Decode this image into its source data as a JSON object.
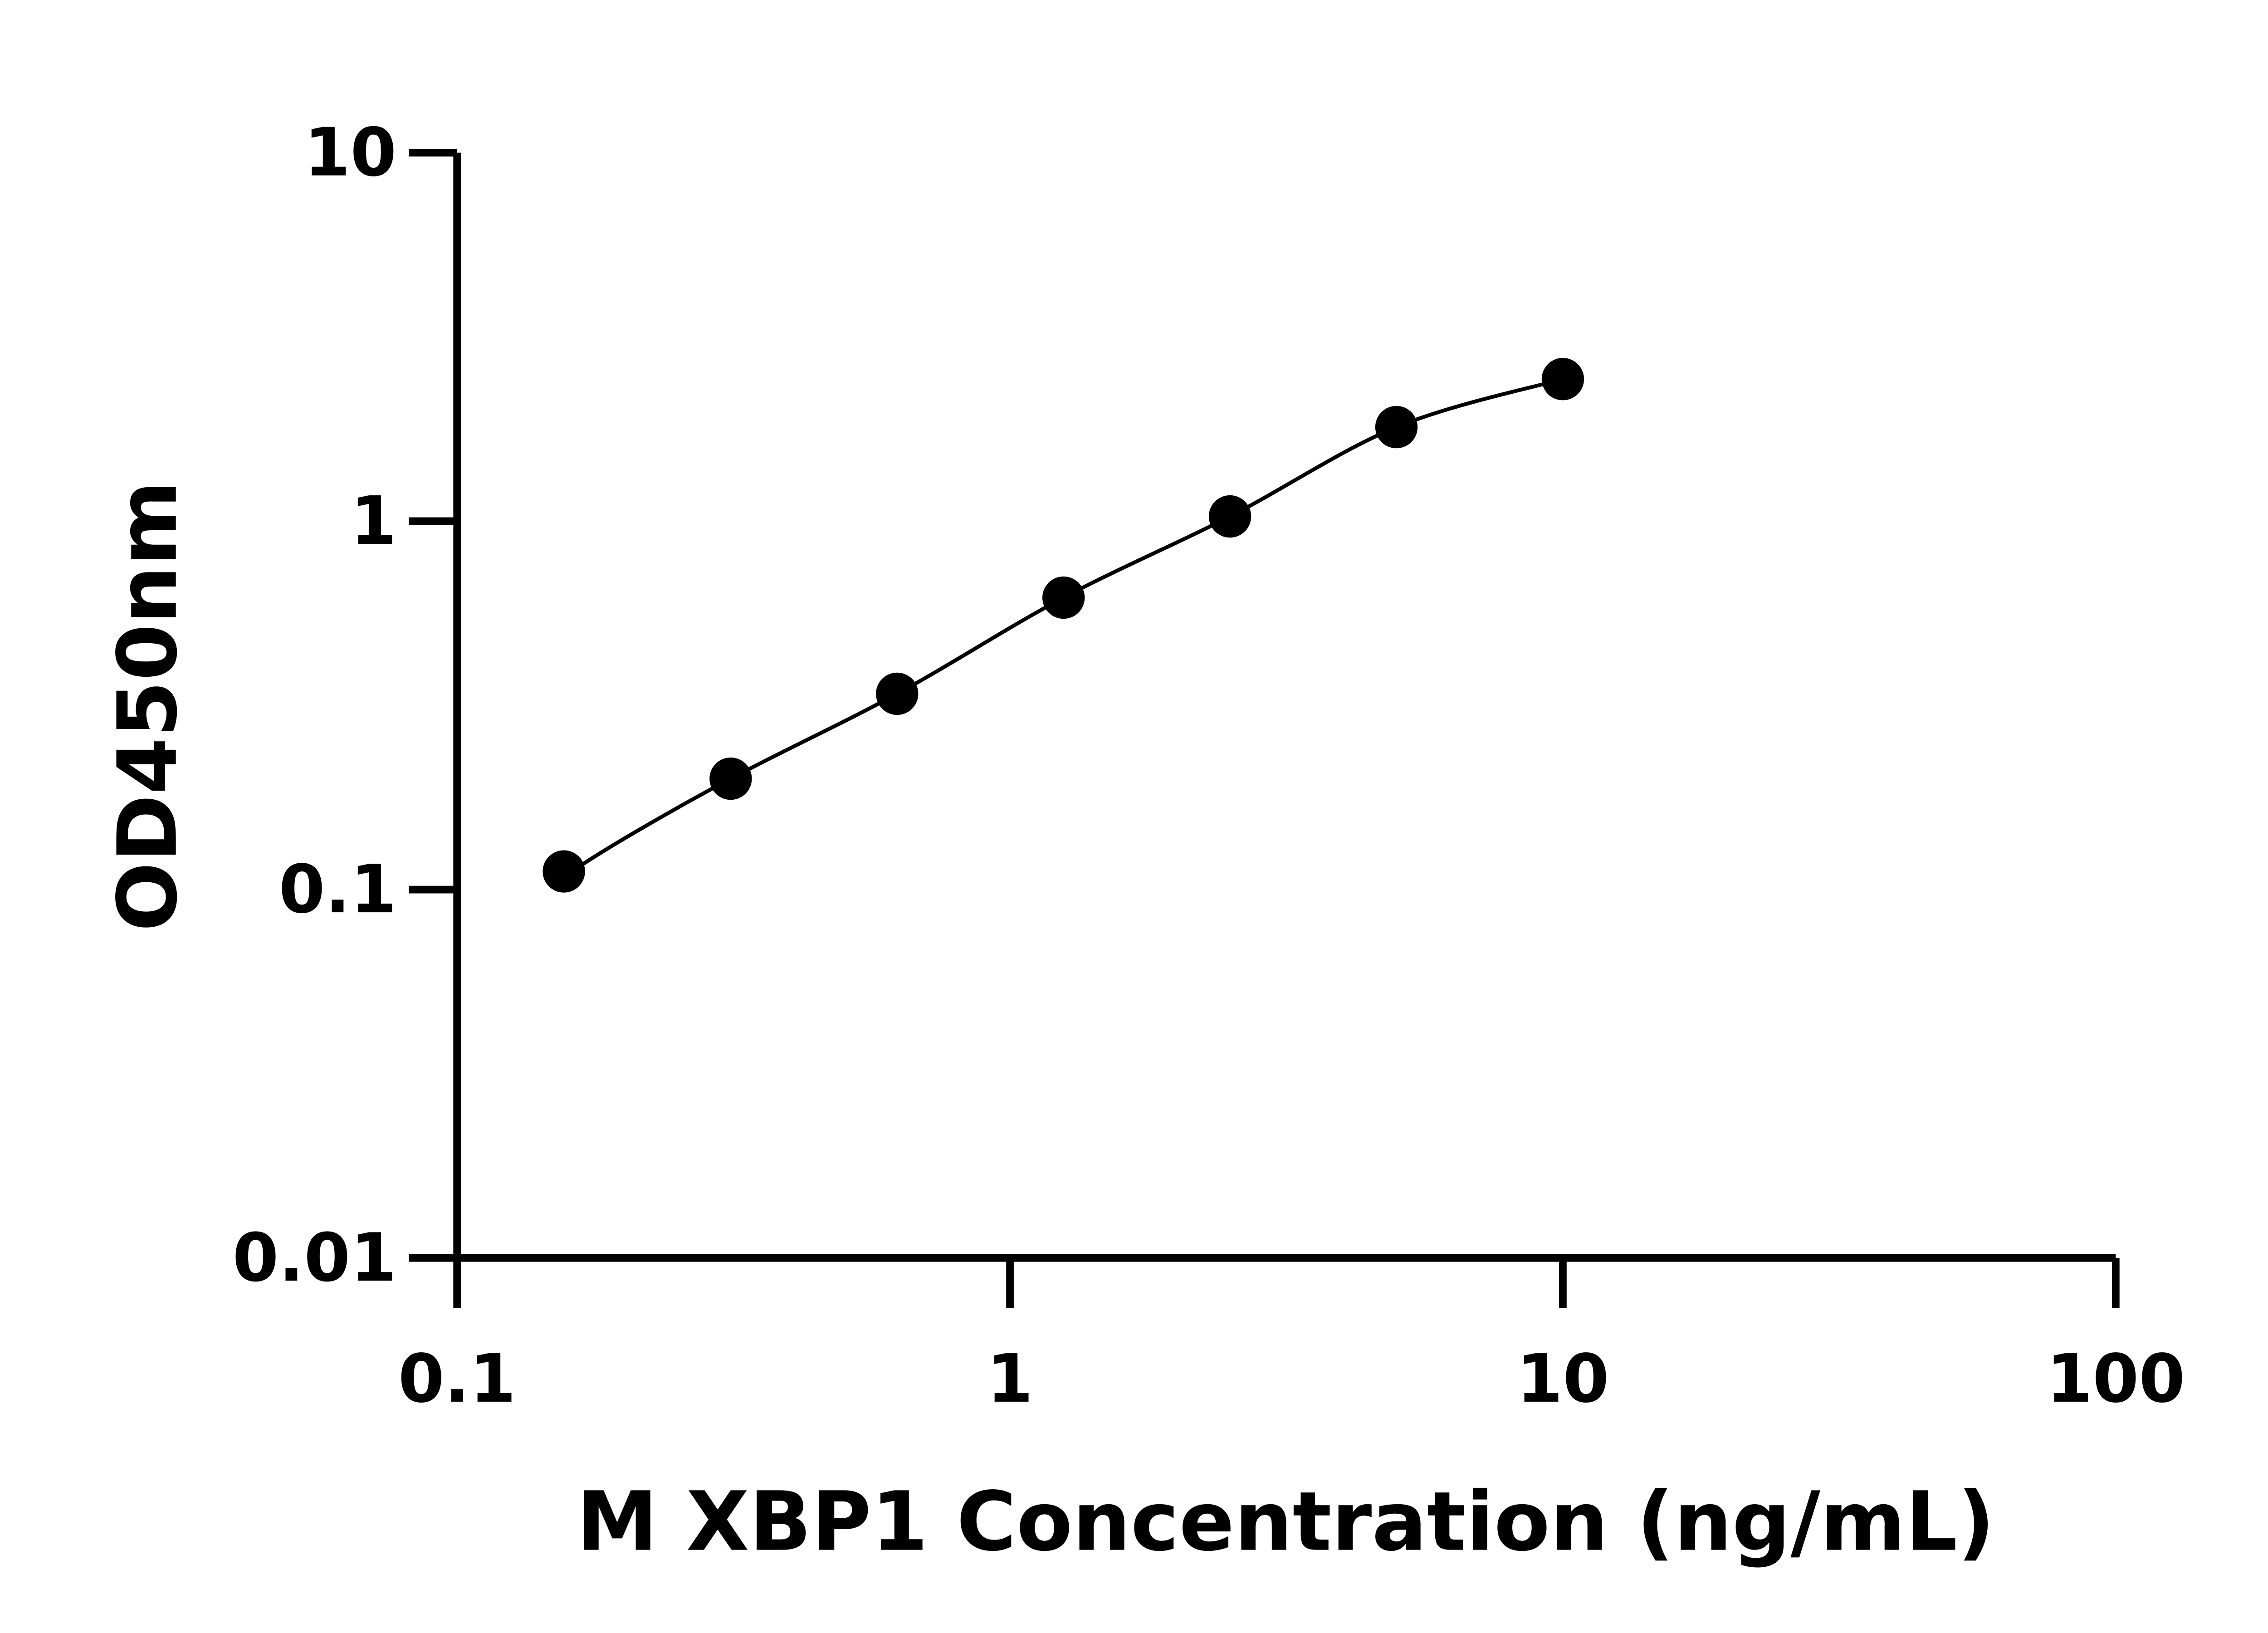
{
  "chart_data": {
    "type": "scatter",
    "title": "",
    "xlabel": "M XBP1 Concentration (ng/mL)",
    "ylabel": "OD450nm",
    "x_scale": "log",
    "y_scale": "log",
    "xlim": [
      0.1,
      100
    ],
    "ylim": [
      0.01,
      10
    ],
    "x_ticks": [
      "0.1",
      "1",
      "10",
      "100"
    ],
    "y_ticks": [
      "0.01",
      "0.1",
      "1",
      "10"
    ],
    "grid": false,
    "fit_curve": true,
    "series": [
      {
        "x": [
          0.156,
          0.3125,
          0.625,
          1.25,
          2.5,
          5,
          10
        ],
        "y": [
          0.112,
          0.2,
          0.34,
          0.62,
          1.03,
          1.8,
          2.43
        ]
      }
    ],
    "colors": {
      "points": "#000000",
      "axes": "#000000"
    }
  }
}
